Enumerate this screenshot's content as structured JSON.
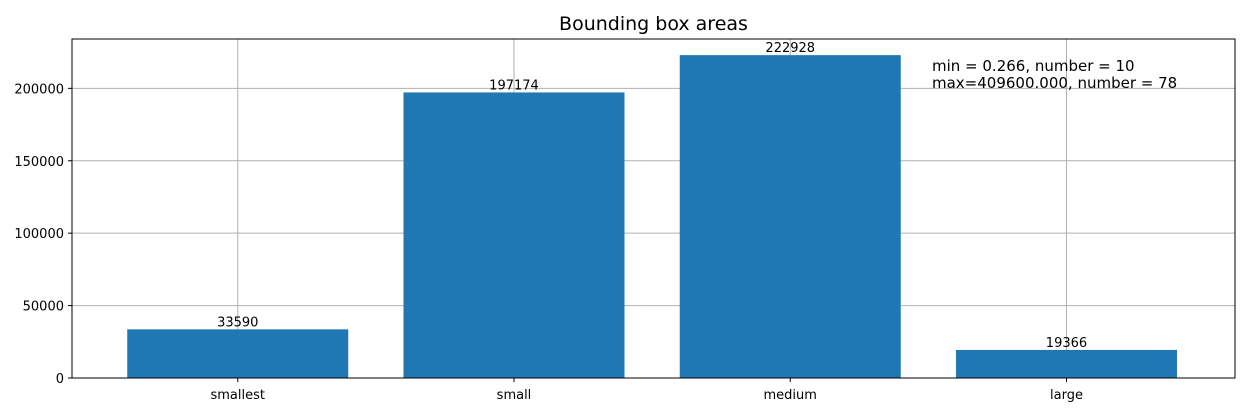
{
  "chart_data": {
    "type": "bar",
    "title": "Bounding box areas",
    "xlabel": "",
    "ylabel": "",
    "categories": [
      "smallest",
      "small",
      "medium",
      "large"
    ],
    "values": [
      33590,
      197174,
      222928,
      19366
    ],
    "data_labels": [
      "33590",
      "197174",
      "222928",
      "19366"
    ],
    "ylim": [
      0,
      234074
    ],
    "yticks": [
      0,
      50000,
      100000,
      150000,
      200000
    ],
    "ytick_labels": [
      "0",
      "50000",
      "100000",
      "150000",
      "200000"
    ],
    "bar_color": "#1f77b4",
    "grid": true,
    "annotations": [
      "min = 0.266, number = 10",
      "max=409600.000, number = 78"
    ]
  }
}
